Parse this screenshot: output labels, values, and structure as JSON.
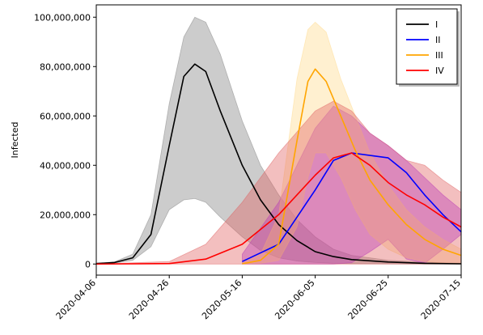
{
  "chart_data": {
    "type": "line",
    "title": "",
    "xlabel": "",
    "ylabel": "Infected",
    "xlim": [
      "2020-04-06",
      "2020-07-15"
    ],
    "ylim": [
      -4500000,
      105000000
    ],
    "x_ticks": [
      "2020-04-06",
      "2020-04-26",
      "2020-05-16",
      "2020-06-05",
      "2020-06-25",
      "2020-07-15"
    ],
    "y_ticks": [
      "0",
      "20,000,000",
      "40,000,000",
      "60,000,000",
      "80,000,000",
      "100,000,000"
    ],
    "y_tick_values": [
      0,
      20000000,
      40000000,
      60000000,
      80000000,
      100000000
    ],
    "legend_position": "top-right",
    "series": [
      {
        "name": "I",
        "color": "#000000",
        "band_color": "#808080",
        "x": [
          "2020-04-06",
          "2020-04-11",
          "2020-04-16",
          "2020-04-21",
          "2020-04-26",
          "2020-04-30",
          "2020-05-03",
          "2020-05-06",
          "2020-05-10",
          "2020-05-16",
          "2020-05-21",
          "2020-05-26",
          "2020-05-31",
          "2020-06-05",
          "2020-06-10",
          "2020-06-15",
          "2020-06-25",
          "2020-07-05",
          "2020-07-15"
        ],
        "values": [
          200000,
          600000,
          2500000,
          12000000,
          48000000,
          76000000,
          81000000,
          78000000,
          62000000,
          40000000,
          26000000,
          16000000,
          9500000,
          5000000,
          3000000,
          1800000,
          800000,
          300000,
          100000
        ],
        "upper": [
          300000,
          900000,
          4000000,
          20000000,
          65000000,
          92000000,
          100000000,
          98000000,
          85000000,
          58000000,
          40000000,
          28000000,
          18000000,
          11000000,
          6000000,
          3500000,
          1500000,
          700000,
          300000
        ],
        "lower": [
          100000,
          400000,
          1500000,
          7000000,
          22000000,
          26000000,
          26500000,
          25000000,
          19000000,
          11000000,
          5500000,
          2500000,
          1200000,
          600000,
          300000,
          150000,
          60000,
          20000,
          10000
        ]
      },
      {
        "name": "II",
        "color": "#0000ff",
        "band_color": "#a020f0",
        "x": [
          "2020-05-16",
          "2020-05-26",
          "2020-06-05",
          "2020-06-10",
          "2020-06-15",
          "2020-06-20",
          "2020-06-25",
          "2020-06-30",
          "2020-07-05",
          "2020-07-10",
          "2020-07-15"
        ],
        "values": [
          1000000,
          8000000,
          30000000,
          42000000,
          45000000,
          44000000,
          43000000,
          37000000,
          28000000,
          20000000,
          13000000
        ],
        "upper": [
          4000000,
          25000000,
          55000000,
          64000000,
          60000000,
          53000000,
          48000000,
          42000000,
          35000000,
          28000000,
          22000000
        ],
        "lower": [
          0,
          0,
          0,
          0,
          500000,
          5000000,
          10000000,
          2000000,
          300000,
          6000000,
          12000000
        ]
      },
      {
        "name": "III",
        "color": "#ffa500",
        "band_color": "#ffd98a",
        "x": [
          "2020-05-16",
          "2020-05-21",
          "2020-05-26",
          "2020-05-31",
          "2020-06-03",
          "2020-06-05",
          "2020-06-08",
          "2020-06-12",
          "2020-06-16",
          "2020-06-20",
          "2020-06-25",
          "2020-06-30",
          "2020-07-05",
          "2020-07-10",
          "2020-07-15"
        ],
        "values": [
          100000,
          1500000,
          8000000,
          50000000,
          74000000,
          79000000,
          74000000,
          60000000,
          46000000,
          34000000,
          24000000,
          16000000,
          10000000,
          6000000,
          3500000
        ],
        "upper": [
          500000,
          4000000,
          20000000,
          75000000,
          95000000,
          98000000,
          94000000,
          75000000,
          60000000,
          45000000,
          32000000,
          22000000,
          15000000,
          10000000,
          6000000
        ],
        "lower": [
          0,
          300000,
          1500000,
          15000000,
          35000000,
          45000000,
          45000000,
          35000000,
          22000000,
          12000000,
          6000000,
          2500000,
          1000000,
          400000,
          200000
        ]
      },
      {
        "name": "IV",
        "color": "#ff0000",
        "band_color": "#e06060",
        "x": [
          "2020-04-06",
          "2020-04-26",
          "2020-05-06",
          "2020-05-16",
          "2020-05-26",
          "2020-06-05",
          "2020-06-10",
          "2020-06-15",
          "2020-06-20",
          "2020-06-25",
          "2020-06-30",
          "2020-07-05",
          "2020-07-10",
          "2020-07-15"
        ],
        "values": [
          0,
          200000,
          2000000,
          8000000,
          20000000,
          36000000,
          43000000,
          45000000,
          40000000,
          33000000,
          28000000,
          24000000,
          19000000,
          15000000
        ],
        "upper": [
          0,
          1000000,
          8000000,
          25000000,
          45000000,
          62000000,
          66000000,
          62000000,
          53000000,
          48000000,
          42000000,
          40000000,
          34000000,
          29000000
        ],
        "lower": [
          0,
          0,
          0,
          0,
          0,
          0,
          0,
          0,
          0,
          0,
          0,
          0,
          0,
          0
        ]
      }
    ]
  }
}
